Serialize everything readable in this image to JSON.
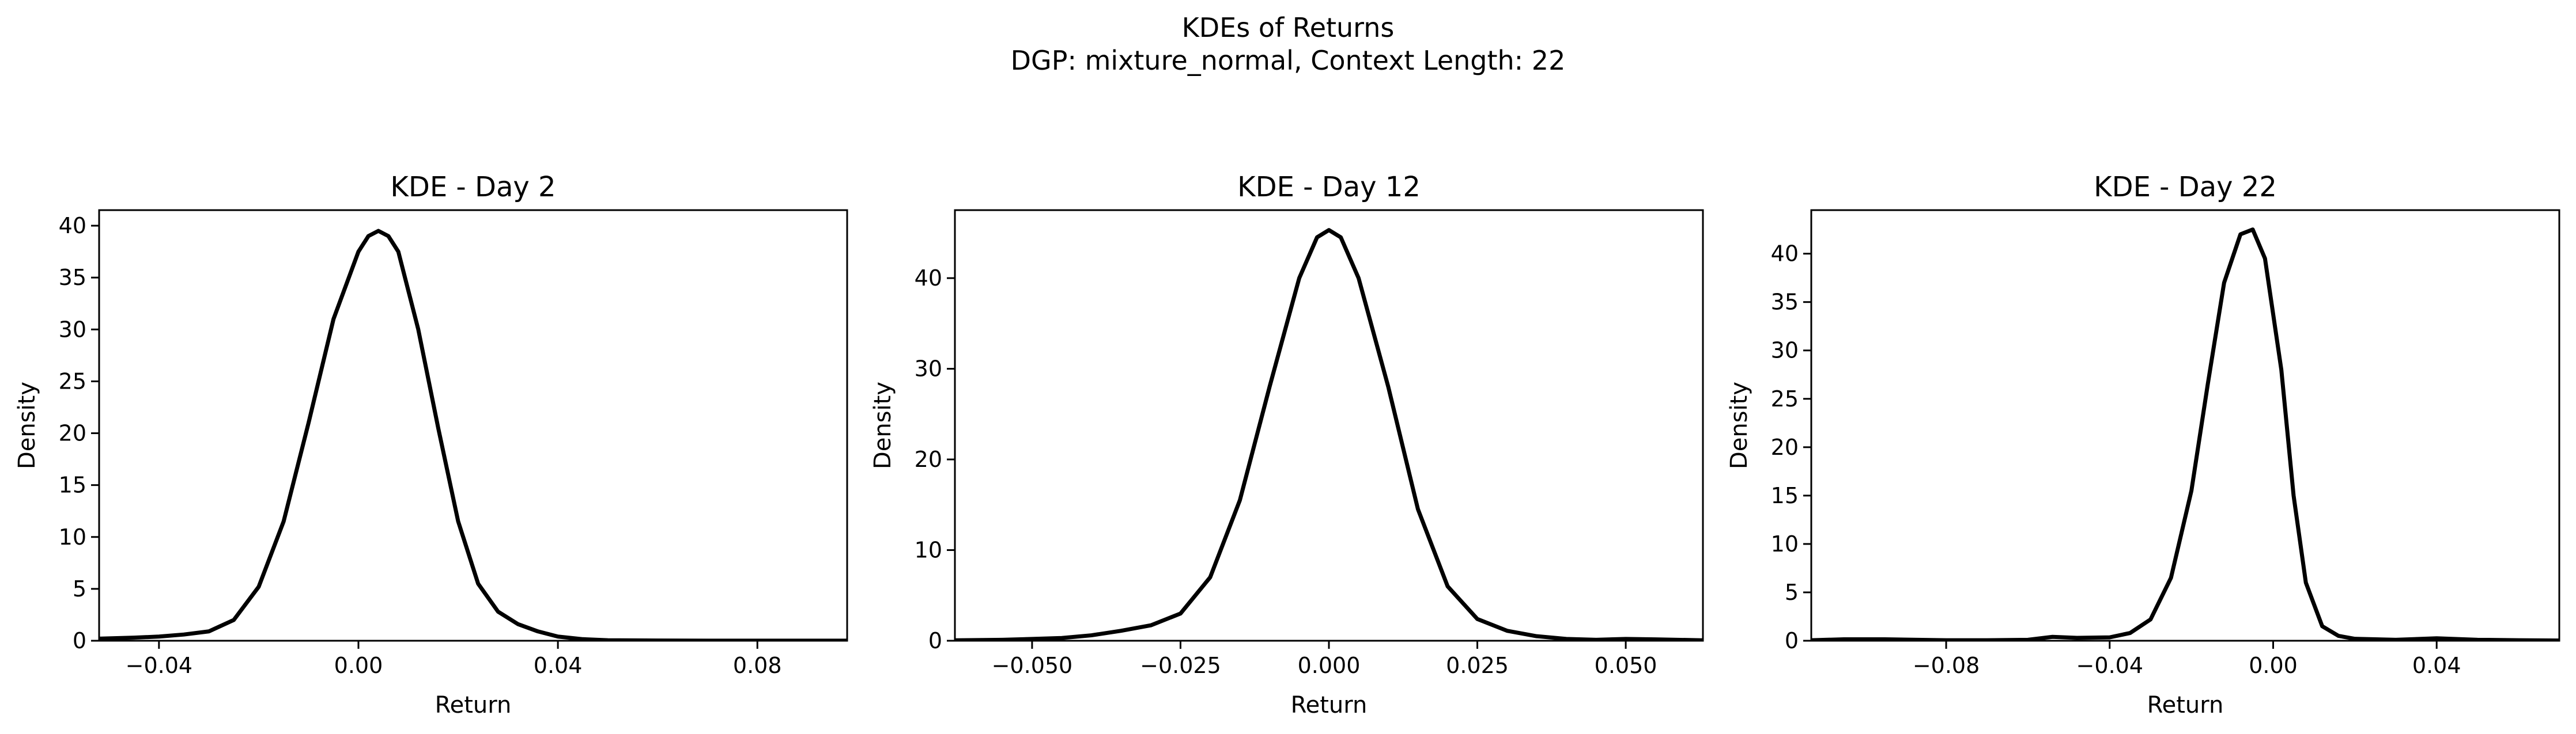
{
  "figure": {
    "title_line1": "KDEs of Returns",
    "title_line2": "DGP: mixture_normal, Context Length: 22"
  },
  "chart_data": [
    {
      "type": "line",
      "title": "KDE - Day 2",
      "xlabel": "Return",
      "ylabel": "Density",
      "xlim": [
        -0.052,
        0.098
      ],
      "ylim": [
        0,
        41.5
      ],
      "xticks": [
        -0.04,
        0.0,
        0.04,
        0.08
      ],
      "xtick_labels": [
        "−0.04",
        "0.00",
        "0.04",
        "0.08"
      ],
      "yticks": [
        0,
        5,
        10,
        15,
        20,
        25,
        30,
        35,
        40
      ],
      "ytick_labels": [
        "0",
        "5",
        "10",
        "15",
        "20",
        "25",
        "30",
        "35",
        "40"
      ],
      "grid": false,
      "legend": "none",
      "line_color": "#000000",
      "series": [
        {
          "x": [
            -0.052,
            -0.045,
            -0.04,
            -0.035,
            -0.03,
            -0.025,
            -0.02,
            -0.015,
            -0.01,
            -0.005,
            0.0,
            0.002,
            0.004,
            0.006,
            0.008,
            0.012,
            0.016,
            0.02,
            0.024,
            0.028,
            0.032,
            0.036,
            0.04,
            0.045,
            0.05,
            0.06,
            0.07,
            0.08,
            0.09,
            0.098
          ],
          "y": [
            0.2,
            0.3,
            0.4,
            0.6,
            0.9,
            2.0,
            5.2,
            11.5,
            21.0,
            31.0,
            37.5,
            39.0,
            39.5,
            39.0,
            37.5,
            30.0,
            20.5,
            11.5,
            5.5,
            2.8,
            1.6,
            0.9,
            0.4,
            0.15,
            0.05,
            0.02,
            0.01,
            0.01,
            0.01,
            0.01
          ]
        }
      ]
    },
    {
      "type": "line",
      "title": "KDE - Day 12",
      "xlabel": "Return",
      "ylabel": "Density",
      "xlim": [
        -0.063,
        0.063
      ],
      "ylim": [
        0,
        47.5
      ],
      "xticks": [
        -0.05,
        -0.025,
        0.0,
        0.025,
        0.05
      ],
      "xtick_labels": [
        "−0.050",
        "−0.025",
        "0.000",
        "0.025",
        "0.050"
      ],
      "yticks": [
        0,
        10,
        20,
        30,
        40
      ],
      "ytick_labels": [
        "0",
        "10",
        "20",
        "30",
        "40"
      ],
      "grid": false,
      "legend": "none",
      "line_color": "#000000",
      "series": [
        {
          "x": [
            -0.063,
            -0.055,
            -0.05,
            -0.045,
            -0.04,
            -0.035,
            -0.03,
            -0.025,
            -0.02,
            -0.015,
            -0.01,
            -0.005,
            -0.002,
            0.0,
            0.002,
            0.005,
            0.01,
            0.015,
            0.02,
            0.025,
            0.03,
            0.035,
            0.04,
            0.045,
            0.05,
            0.055,
            0.063
          ],
          "y": [
            0.05,
            0.1,
            0.2,
            0.3,
            0.6,
            1.1,
            1.7,
            3.0,
            7.0,
            15.5,
            28.0,
            40.0,
            44.5,
            45.3,
            44.5,
            40.0,
            28.0,
            14.5,
            6.0,
            2.4,
            1.1,
            0.5,
            0.2,
            0.1,
            0.2,
            0.15,
            0.05
          ]
        }
      ]
    },
    {
      "type": "line",
      "title": "KDE - Day 22",
      "xlabel": "Return",
      "ylabel": "Density",
      "xlim": [
        -0.113,
        0.07
      ],
      "ylim": [
        0,
        44.5
      ],
      "xticks": [
        -0.08,
        -0.04,
        0.0,
        0.04
      ],
      "xtick_labels": [
        "−0.08",
        "−0.04",
        "0.00",
        "0.04"
      ],
      "yticks": [
        0,
        5,
        10,
        15,
        20,
        25,
        30,
        35,
        40
      ],
      "ytick_labels": [
        "0",
        "5",
        "10",
        "15",
        "20",
        "25",
        "30",
        "35",
        "40"
      ],
      "grid": false,
      "legend": "none",
      "line_color": "#000000",
      "series": [
        {
          "x": [
            -0.113,
            -0.105,
            -0.095,
            -0.08,
            -0.07,
            -0.06,
            -0.054,
            -0.048,
            -0.04,
            -0.035,
            -0.03,
            -0.025,
            -0.02,
            -0.016,
            -0.012,
            -0.008,
            -0.005,
            -0.002,
            0.002,
            0.005,
            0.008,
            0.012,
            0.016,
            0.02,
            0.03,
            0.04,
            0.05,
            0.06,
            0.07
          ],
          "y": [
            0.05,
            0.15,
            0.15,
            0.05,
            0.05,
            0.1,
            0.4,
            0.3,
            0.35,
            0.8,
            2.2,
            6.5,
            15.5,
            26.5,
            37.0,
            42.0,
            42.5,
            39.5,
            28.0,
            15.0,
            6.0,
            1.5,
            0.5,
            0.2,
            0.1,
            0.25,
            0.1,
            0.05,
            0.02
          ]
        }
      ]
    }
  ]
}
